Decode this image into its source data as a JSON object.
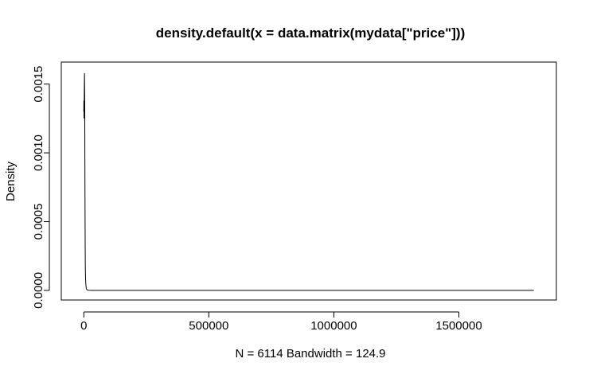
{
  "chart_data": {
    "type": "line",
    "title": "density.default(x = data.matrix(mydata[\"price\"]))",
    "xlabel": "N = 6114   Bandwidth = 124.9",
    "ylabel": "Density",
    "xlim": [
      -90000,
      1890000
    ],
    "ylim": [
      -7e-05,
      0.00166
    ],
    "x_ticks": [
      0,
      500000,
      1000000,
      1500000
    ],
    "x_tick_labels": [
      "0",
      "500000",
      "1000000",
      "1500000"
    ],
    "y_ticks": [
      0,
      0.0005,
      0.001,
      0.0015
    ],
    "y_tick_labels": [
      "0.0000",
      "0.0005",
      "0.0010",
      "0.0015"
    ],
    "grid": false,
    "series": [
      {
        "x": [
          0,
          400,
          800,
          1200,
          1600,
          2000,
          2400,
          2800,
          3200,
          3600,
          4000,
          4400,
          4800,
          5200,
          5600,
          6000,
          6500,
          7000,
          7500,
          8000,
          9000,
          10000,
          12000,
          15000,
          20000,
          30000,
          50000,
          100000,
          300000,
          700000,
          1100000,
          1500000,
          1800000
        ],
        "y": [
          0.0013,
          0.00138,
          0.00132,
          0.00125,
          0.00133,
          0.00145,
          0.00152,
          0.00158,
          0.0015,
          0.0014,
          0.00118,
          0.00092,
          0.00068,
          0.00048,
          0.00032,
          0.0002,
          0.00013,
          9e-05,
          7e-05,
          5e-05,
          3e-05,
          1.5e-05,
          6e-06,
          2e-06,
          1e-06,
          5e-07,
          2e-07,
          1e-07,
          5e-08,
          3e-08,
          2e-08,
          1e-08,
          0.0
        ]
      }
    ]
  }
}
